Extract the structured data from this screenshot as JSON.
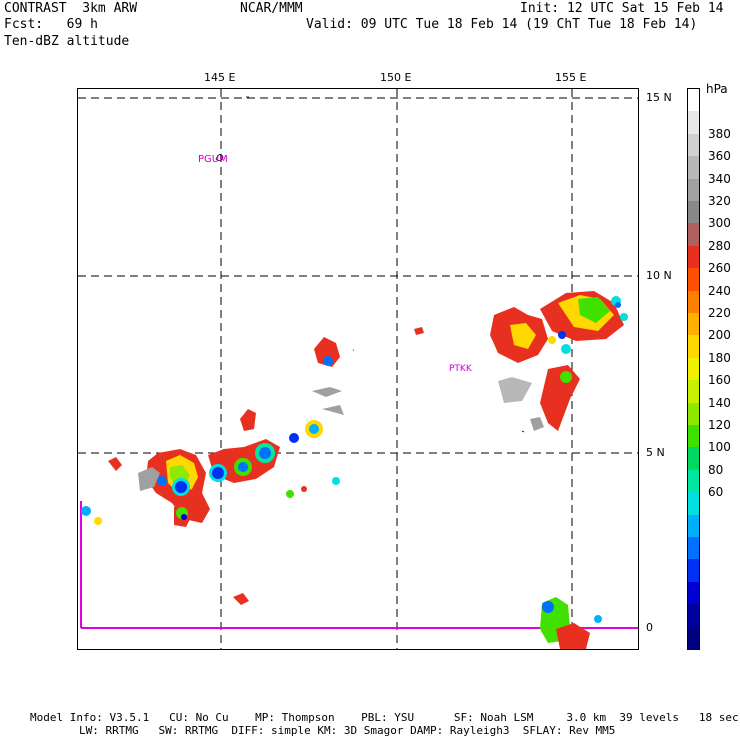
{
  "header": {
    "left1": "CONTRAST  3km ARW",
    "left2": "Fcst:   69 h",
    "left3": "Ten-dBZ altitude",
    "center": "NCAR/MMM",
    "right1": "Init: 12 UTC Sat 15 Feb 14",
    "right2": "Valid: 09 UTC Tue 18 Feb 14 (19 ChT Tue 18 Feb 14)"
  },
  "map": {
    "lon_labels": [
      "145 E",
      "150 E",
      "155 E"
    ],
    "lat_labels": [
      "15 N",
      "10 N",
      "5 N",
      "0"
    ],
    "stations": [
      "PGUM",
      "PTKK"
    ]
  },
  "colorbar": {
    "unit": "hPa",
    "labels": [
      "380",
      "360",
      "340",
      "320",
      "300",
      "280",
      "260",
      "240",
      "220",
      "200",
      "180",
      "160",
      "140",
      "120",
      "100",
      "80",
      "60"
    ],
    "colors": [
      "#ffffff",
      "#e8e8e8",
      "#d0d0d0",
      "#b8b8b8",
      "#a0a0a0",
      "#888888",
      "#b06060",
      "#e83020",
      "#ff5000",
      "#ff8000",
      "#ffb000",
      "#ffd800",
      "#f0f000",
      "#c8f000",
      "#90e800",
      "#40e000",
      "#00d860",
      "#00e8a0",
      "#00e0e0",
      "#00b0ff",
      "#0070ff",
      "#0030f0",
      "#0000d0",
      "#0000a0",
      "#000080"
    ]
  },
  "footer": {
    "line1": "Model Info: V3.5.1   CU: No Cu    MP: Thompson    PBL: YSU      SF: Noah LSM     3.0 km  39 levels   18 sec",
    "line2": "LW: RRTMG   SW: RRTMG  DIFF: simple KM: 3D Smagor DAMP: Rayleigh3  SFLAY: Rev MM5"
  }
}
